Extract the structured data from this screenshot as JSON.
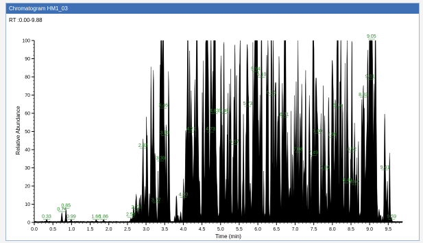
{
  "window": {
    "title": "Chromatogram HM1_03"
  },
  "rt_range_text": "RT :0.00-9.88",
  "chart_data": {
    "type": "area",
    "xlabel": "Time (min)",
    "ylabel": "Relative Abundance",
    "xlim": [
      0,
      9.88
    ],
    "ylim": [
      0,
      100
    ],
    "x_ticks": [
      "0.0",
      "0.5",
      "1.0",
      "1.5",
      "2.0",
      "2.5",
      "3.0",
      "3.5",
      "4.0",
      "4.5",
      "5.0",
      "5.5",
      "6.0",
      "6.5",
      "7.0",
      "7.5",
      "8.0",
      "8.5",
      "9.0",
      "9.5"
    ],
    "y_ticks": [
      "0",
      "10",
      "20",
      "30",
      "40",
      "50",
      "60",
      "70",
      "80",
      "90",
      "100"
    ],
    "trace_color": "#000000",
    "label_color": "#2a8a2a",
    "peaks": [
      {
        "rt": "0.33",
        "x": 0.33,
        "y": 1
      },
      {
        "rt": "0.74",
        "x": 0.74,
        "y": 5
      },
      {
        "rt": "0.85",
        "x": 0.85,
        "y": 7
      },
      {
        "rt": "0.99",
        "x": 0.99,
        "y": 1
      },
      {
        "rt": "1.66",
        "x": 1.66,
        "y": 1
      },
      {
        "rt": "1.86",
        "x": 1.86,
        "y": 1
      },
      {
        "rt": "2.59",
        "x": 2.59,
        "y": 2
      },
      {
        "rt": "2.73",
        "x": 2.73,
        "y": 6
      },
      {
        "rt": "2.92",
        "x": 2.92,
        "y": 40
      },
      {
        "rt": "3.27",
        "x": 3.27,
        "y": 10
      },
      {
        "rt": "3.39",
        "x": 3.39,
        "y": 33
      },
      {
        "rt": "3.46",
        "x": 3.46,
        "y": 62
      },
      {
        "rt": "3.50",
        "x": 3.5,
        "y": 47
      },
      {
        "rt": "4.00",
        "x": 4.0,
        "y": 13
      },
      {
        "rt": "4.21",
        "x": 4.21,
        "y": 49
      },
      {
        "rt": "4.73",
        "x": 4.73,
        "y": 49
      },
      {
        "rt": "4.83",
        "x": 4.83,
        "y": 59
      },
      {
        "rt": "5.08",
        "x": 5.08,
        "y": 59
      },
      {
        "rt": "5.37",
        "x": 5.37,
        "y": 42
      },
      {
        "rt": "5.73",
        "x": 5.73,
        "y": 63
      },
      {
        "rt": "5.94",
        "x": 5.94,
        "y": 82
      },
      {
        "rt": "6.10",
        "x": 6.1,
        "y": 79
      },
      {
        "rt": "6.36",
        "x": 6.36,
        "y": 69
      },
      {
        "rt": "6.71",
        "x": 6.71,
        "y": 57
      },
      {
        "rt": "7.08",
        "x": 7.08,
        "y": 38
      },
      {
        "rt": "7.49",
        "x": 7.49,
        "y": 36
      },
      {
        "rt": "7.60",
        "x": 7.6,
        "y": 48
      },
      {
        "rt": "7.80",
        "x": 7.8,
        "y": 28
      },
      {
        "rt": "7.99",
        "x": 7.99,
        "y": 46
      },
      {
        "rt": "8.14",
        "x": 8.14,
        "y": 62
      },
      {
        "rt": "8.40",
        "x": 8.4,
        "y": 21
      },
      {
        "rt": "8.52",
        "x": 8.52,
        "y": 38
      },
      {
        "rt": "8.60",
        "x": 8.6,
        "y": 20
      },
      {
        "rt": "8.83",
        "x": 8.83,
        "y": 68
      },
      {
        "rt": "9.01",
        "x": 9.01,
        "y": 78
      },
      {
        "rt": "9.05",
        "x": 9.05,
        "y": 100
      },
      {
        "rt": "9.41",
        "x": 9.41,
        "y": 28
      },
      {
        "rt": "9.59",
        "x": 9.59,
        "y": 1
      }
    ]
  }
}
